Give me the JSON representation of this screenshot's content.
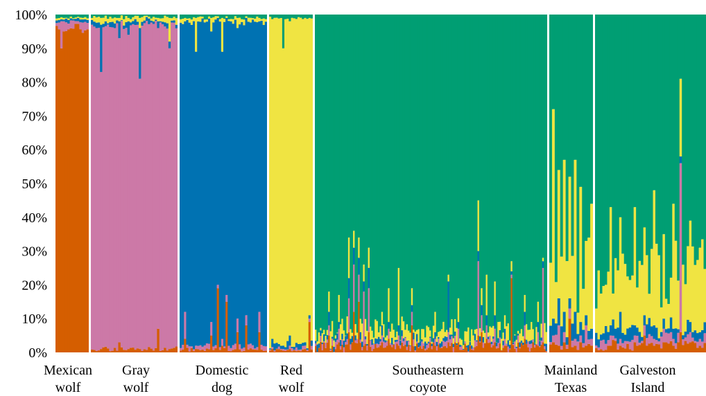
{
  "chart_data": {
    "type": "stacked-bar",
    "y_ticks": [
      "0%",
      "10%",
      "20%",
      "30%",
      "40%",
      "50%",
      "60%",
      "70%",
      "80%",
      "90%",
      "100%"
    ],
    "ylim": [
      0,
      100
    ],
    "grid": false,
    "legend": "none",
    "series": [
      {
        "key": "mexican_wolf",
        "color": "#D55E00"
      },
      {
        "key": "gray_wolf",
        "color": "#CC79A7"
      },
      {
        "key": "domestic_dog",
        "color": "#0072B2"
      },
      {
        "key": "red_wolf",
        "color": "#F0E442"
      },
      {
        "key": "coyote",
        "color": "#009E73"
      }
    ],
    "groups": [
      {
        "label": [
          "Mexican",
          "wolf"
        ],
        "n": 14,
        "base": [
          96,
          2,
          0.7,
          0.5,
          0.8
        ],
        "jitter": [
          2,
          1.2,
          0.4,
          0.3,
          0.4
        ],
        "specials": [
          [
            2,
            [
              90,
              8,
              0.6,
              0.6,
              0.8
            ]
          ],
          [
            3,
            [
              95,
              3,
              0.5,
              0.5,
              1
            ]
          ]
        ]
      },
      {
        "label": [
          "Gray",
          "wolf"
        ],
        "n": 38,
        "base": [
          1,
          96,
          1,
          1.2,
          0.8
        ],
        "jitter": [
          0.8,
          1.5,
          0.8,
          0.8,
          0.6
        ],
        "specials": [
          [
            4,
            [
              1,
              82,
              14,
              2,
              1
            ]
          ],
          [
            12,
            [
              3,
              90,
              5,
              1,
              1
            ]
          ],
          [
            21,
            [
              1,
              80,
              15,
              3,
              1
            ]
          ],
          [
            29,
            [
              7,
              89,
              2,
              1,
              1
            ]
          ],
          [
            34,
            [
              1,
              89,
              2,
              7,
              1
            ]
          ],
          [
            16,
            [
              1,
              93,
              4,
              1,
              1
            ]
          ]
        ]
      },
      {
        "label": [
          "Domestic",
          "dog"
        ],
        "n": 40,
        "base": [
          0.8,
          1,
          96,
          1.2,
          1
        ],
        "jitter": [
          0.6,
          0.7,
          1.2,
          0.8,
          0.6
        ],
        "specials": [
          [
            2,
            [
              4,
              8,
              86,
              1,
              1
            ]
          ],
          [
            7,
            [
              1,
              1,
              87,
              10,
              1
            ]
          ],
          [
            14,
            [
              5,
              4,
              86,
              4,
              1
            ]
          ],
          [
            17,
            [
              19,
              1,
              79,
              0.5,
              0.5
            ]
          ],
          [
            19,
            [
              2,
              2,
              85,
              10,
              1
            ]
          ],
          [
            21,
            [
              15,
              2,
              82,
              0.5,
              0.5
            ]
          ],
          [
            26,
            [
              6,
              4,
              86,
              3,
              1
            ]
          ],
          [
            30,
            [
              8,
              3,
              88,
              0.5,
              0.5
            ]
          ],
          [
            36,
            [
              6,
              6,
              86,
              1,
              1
            ]
          ]
        ]
      },
      {
        "label": [
          "Red",
          "wolf"
        ],
        "n": 20,
        "base": [
          0.6,
          0.6,
          1.5,
          96.3,
          1
        ],
        "jitter": [
          0.5,
          0.5,
          1.2,
          1.2,
          0.4
        ],
        "specials": [
          [
            6,
            [
              0.5,
              0.5,
              1,
              88,
              10
            ]
          ],
          [
            9,
            [
              1,
              1,
              3,
              93,
              2
            ]
          ],
          [
            16,
            [
              1,
              1,
              1,
              96,
              1
            ]
          ],
          [
            18,
            [
              9,
              1,
              1,
              88,
              1
            ]
          ]
        ]
      },
      {
        "label": [
          "Southeastern",
          "coyote"
        ],
        "n": 140,
        "base": [
          1.5,
          1,
          1,
          3,
          93.5
        ],
        "jitter": [
          1.5,
          1.2,
          1.2,
          3,
          5
        ],
        "specials": [
          [
            8,
            [
              5,
              3,
              4,
              6,
              82
            ]
          ],
          [
            14,
            [
              3,
              4,
              2,
              8,
              83
            ]
          ],
          [
            20,
            [
              6,
              10,
              6,
              12,
              66
            ]
          ],
          [
            23,
            [
              12,
              14,
              5,
              5,
              64
            ]
          ],
          [
            26,
            [
              15,
              8,
              5,
              6,
              66
            ]
          ],
          [
            29,
            [
              2,
              16,
              3,
              5,
              74
            ]
          ],
          [
            32,
            [
              6,
              13,
              6,
              6,
              69
            ]
          ],
          [
            40,
            [
              3,
              2,
              3,
              4,
              88
            ]
          ],
          [
            44,
            [
              4,
              3,
              2,
              10,
              81
            ]
          ],
          [
            50,
            [
              2,
              3,
              3,
              17,
              75
            ]
          ],
          [
            58,
            [
              8,
              4,
              2,
              5,
              81
            ]
          ],
          [
            72,
            [
              2,
              2,
              2,
              6,
              88
            ]
          ],
          [
            80,
            [
              3,
              3,
              15,
              2,
              77
            ]
          ],
          [
            86,
            [
              3,
              4,
              2,
              7,
              84
            ]
          ],
          [
            98,
            [
              5,
              22,
              3,
              15,
              55
            ]
          ],
          [
            100,
            [
              6,
              5,
              3,
              5,
              81
            ]
          ],
          [
            103,
            [
              4,
              4,
              3,
              12,
              77
            ]
          ],
          [
            108,
            [
              3,
              4,
              4,
              10,
              79
            ]
          ],
          [
            114,
            [
              2,
              2,
              3,
              4,
              89
            ]
          ],
          [
            118,
            [
              22,
              1,
              1,
              3,
              73
            ]
          ],
          [
            126,
            [
              4,
              4,
              4,
              5,
              83
            ]
          ],
          [
            134,
            [
              2,
              4,
              3,
              6,
              85
            ]
          ],
          [
            137,
            [
              3,
              22,
              2,
              1,
              72
            ]
          ]
        ]
      },
      {
        "label": [
          "Mainland",
          "Texas"
        ],
        "n": 16,
        "base": [
          2,
          2,
          4,
          18,
          74
        ],
        "jitter": [
          1.5,
          1.5,
          3,
          14,
          14
        ],
        "specials": [
          [
            1,
            [
              3,
              2,
              5,
              62,
              28
            ]
          ],
          [
            3,
            [
              2,
              6,
              8,
              38,
              46
            ]
          ],
          [
            5,
            [
              3,
              3,
              6,
              45,
              43
            ]
          ],
          [
            7,
            [
              10,
              3,
              3,
              36,
              48
            ]
          ],
          [
            9,
            [
              2,
              2,
              8,
              45,
              43
            ]
          ],
          [
            11,
            [
              3,
              2,
              4,
              40,
              51
            ]
          ],
          [
            13,
            [
              2,
              6,
              3,
              22,
              67
            ]
          ],
          [
            15,
            [
              2,
              2,
              3,
              37,
              56
            ]
          ]
        ]
      },
      {
        "label": [
          "Galveston",
          "Island"
        ],
        "n": 46,
        "base": [
          2,
          2,
          3,
          18,
          75
        ],
        "jitter": [
          1.5,
          1.5,
          2,
          12,
          12
        ],
        "specials": [
          [
            6,
            [
              2,
              3,
              3,
              35,
              57
            ]
          ],
          [
            10,
            [
              2,
              2,
              8,
              28,
              60
            ]
          ],
          [
            16,
            [
              3,
              2,
              3,
              35,
              57
            ]
          ],
          [
            20,
            [
              5,
              3,
              3,
              26,
              63
            ]
          ],
          [
            24,
            [
              2,
              2,
              4,
              40,
              52
            ]
          ],
          [
            28,
            [
              3,
              4,
              3,
              25,
              65
            ]
          ],
          [
            32,
            [
              2,
              2,
              3,
              37,
              56
            ]
          ],
          [
            35,
            [
              6,
              50,
              2,
              23,
              19
            ]
          ],
          [
            39,
            [
              3,
              3,
              3,
              30,
              61
            ]
          ],
          [
            43,
            [
              2,
              2,
              2,
              25,
              69
            ]
          ]
        ]
      }
    ]
  }
}
